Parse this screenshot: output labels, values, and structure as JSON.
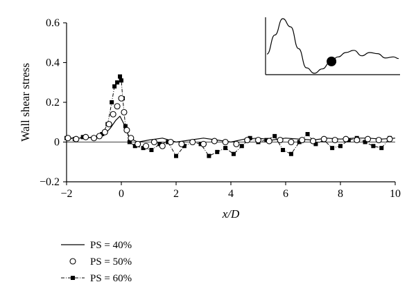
{
  "chart_data": {
    "type": "line",
    "xlabel": "x/D",
    "ylabel": "Wall shear stress",
    "xlim": [
      -2,
      10
    ],
    "ylim": [
      -0.2,
      0.6
    ],
    "x_ticks": [
      -2,
      0,
      2,
      4,
      6,
      8,
      10
    ],
    "y_ticks": [
      -0.2,
      0,
      0.2,
      0.4,
      0.6
    ],
    "x_tick_labels": [
      "−2",
      "0",
      "2",
      "4",
      "6",
      "8",
      "10"
    ],
    "y_tick_labels": [
      "−0.2",
      "0",
      "0.2",
      "0.4",
      "0.6"
    ],
    "grid": false,
    "legend_placement": "bottom-left, below plot",
    "series": [
      {
        "name": "PS = 40%",
        "style": "solid",
        "x": [
          -2.0,
          -1.5,
          -1.0,
          -0.6,
          -0.4,
          -0.2,
          -0.05,
          0.1,
          0.3,
          0.6,
          1.0,
          1.5,
          2.0,
          2.5,
          3.0,
          3.5,
          4.0,
          4.5,
          5.0,
          5.5,
          6.0,
          6.5,
          7.0,
          7.5,
          8.0,
          8.5,
          9.0,
          9.5,
          10.0
        ],
        "y": [
          0.02,
          0.02,
          0.025,
          0.04,
          0.07,
          0.11,
          0.13,
          0.09,
          0.02,
          0.0,
          0.01,
          0.02,
          0.0,
          0.01,
          0.02,
          0.01,
          0.0,
          0.015,
          0.02,
          0.01,
          0.02,
          0.015,
          0.01,
          0.02,
          0.015,
          0.02,
          0.02,
          0.015,
          0.02
        ]
      },
      {
        "name": "PS = 50%",
        "style": "open-circles",
        "x": [
          -1.95,
          -1.65,
          -1.3,
          -1.0,
          -0.8,
          -0.6,
          -0.45,
          -0.3,
          -0.15,
          0.0,
          0.1,
          0.2,
          0.35,
          0.6,
          0.9,
          1.2,
          1.5,
          1.8,
          2.2,
          2.6,
          3.0,
          3.4,
          3.8,
          4.2,
          4.6,
          5.0,
          5.4,
          5.8,
          6.2,
          6.6,
          7.0,
          7.4,
          7.8,
          8.2,
          8.6,
          9.0,
          9.4,
          9.8
        ],
        "y": [
          0.02,
          0.015,
          0.025,
          0.02,
          0.03,
          0.05,
          0.09,
          0.14,
          0.18,
          0.22,
          0.15,
          0.06,
          0.02,
          -0.01,
          -0.02,
          0.0,
          -0.02,
          0.0,
          -0.01,
          0.0,
          -0.01,
          0.005,
          0.0,
          -0.01,
          0.01,
          0.01,
          0.005,
          0.01,
          0.0,
          0.01,
          0.005,
          0.015,
          0.01,
          0.015,
          0.01,
          0.015,
          0.01,
          0.015
        ]
      },
      {
        "name": "PS = 60%",
        "style": "dash-dot with filled squares",
        "x": [
          -2.0,
          -1.7,
          -1.4,
          -1.0,
          -0.7,
          -0.5,
          -0.35,
          -0.25,
          -0.15,
          -0.05,
          0.0,
          0.05,
          0.15,
          0.3,
          0.5,
          0.8,
          1.1,
          1.4,
          1.7,
          2.0,
          2.3,
          2.6,
          2.9,
          3.2,
          3.5,
          3.8,
          4.1,
          4.4,
          4.7,
          5.0,
          5.3,
          5.6,
          5.9,
          6.2,
          6.5,
          6.8,
          7.1,
          7.4,
          7.7,
          8.0,
          8.3,
          8.6,
          8.9,
          9.2,
          9.5,
          9.8
        ],
        "y": [
          0.02,
          0.015,
          0.025,
          0.02,
          0.04,
          0.09,
          0.2,
          0.28,
          0.3,
          0.33,
          0.31,
          0.22,
          0.08,
          0.0,
          -0.02,
          -0.03,
          -0.04,
          -0.01,
          0.0,
          -0.07,
          -0.02,
          0.0,
          -0.01,
          -0.07,
          -0.05,
          -0.03,
          -0.06,
          -0.02,
          0.02,
          0.0,
          0.01,
          0.03,
          -0.04,
          -0.06,
          0.0,
          0.04,
          -0.01,
          0.01,
          -0.03,
          -0.02,
          0.01,
          0.02,
          0.0,
          -0.02,
          -0.03,
          0.02
        ]
      }
    ],
    "inset": {
      "description_type": "line with marker",
      "x": [
        0.0,
        0.06,
        0.12,
        0.18,
        0.24,
        0.3,
        0.36,
        0.42,
        0.48,
        0.54,
        0.6,
        0.66,
        0.72,
        0.78,
        0.84,
        0.9,
        0.96,
        1.0
      ],
      "y": [
        0.35,
        0.7,
        1.0,
        0.85,
        0.45,
        0.1,
        0.0,
        0.08,
        0.2,
        0.3,
        0.38,
        0.42,
        0.32,
        0.38,
        0.36,
        0.28,
        0.3,
        0.27
      ],
      "marker_x": 0.49
    }
  }
}
